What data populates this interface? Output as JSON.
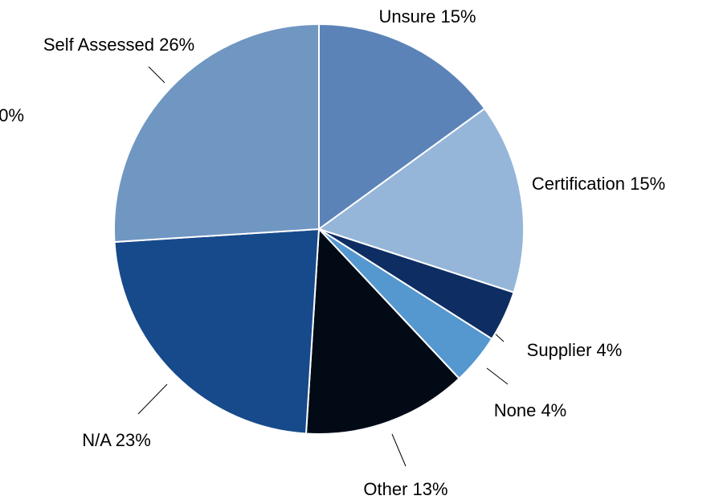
{
  "chart_data": {
    "type": "pie",
    "categories": [
      "Unsure",
      "Certification",
      "Supplier",
      "None",
      "Other",
      "N/A",
      "Self Assessed",
      null
    ],
    "values": [
      15,
      15,
      4,
      4,
      13,
      23,
      26,
      0
    ],
    "value_labels": [
      "Unsure 15%",
      "Certification 15%",
      "Supplier 4%",
      "None 4%",
      "Other 13%",
      "N/A 23%",
      "Self Assessed 26%",
      "0%"
    ],
    "colors": [
      "#5b83b8",
      "#95b6d9",
      "#0d2d63",
      "#5597cf",
      "#020a16",
      "#174a8b",
      "#7096c2",
      "#a0a0a0"
    ]
  }
}
